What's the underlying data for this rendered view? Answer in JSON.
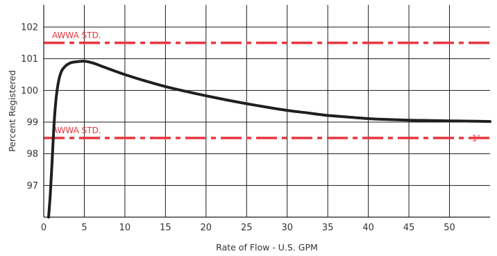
{
  "chart_data": {
    "type": "line",
    "xlabel": "Rate of Flow - U.S. GPM",
    "ylabel": "Percent Registered",
    "xlim": [
      0,
      55
    ],
    "ylim": [
      96,
      102.7
    ],
    "grid": true,
    "x_ticks": [
      0,
      5,
      10,
      15,
      20,
      25,
      30,
      35,
      40,
      45,
      50
    ],
    "y_ticks": [
      97,
      98,
      99,
      100,
      101,
      102
    ],
    "series": [
      {
        "name": "1″",
        "color": "#1f1f1f",
        "points": [
          [
            0.6,
            96.0
          ],
          [
            0.8,
            96.7
          ],
          [
            1.0,
            97.6
          ],
          [
            1.2,
            98.6
          ],
          [
            1.4,
            99.4
          ],
          [
            1.7,
            100.1
          ],
          [
            2.1,
            100.55
          ],
          [
            2.6,
            100.75
          ],
          [
            3.3,
            100.87
          ],
          [
            4.2,
            100.91
          ],
          [
            5.0,
            100.92
          ],
          [
            6.0,
            100.87
          ],
          [
            7.5,
            100.73
          ],
          [
            10.0,
            100.5
          ],
          [
            12.5,
            100.3
          ],
          [
            15.0,
            100.12
          ],
          [
            17.5,
            99.97
          ],
          [
            20.0,
            99.83
          ],
          [
            22.5,
            99.7
          ],
          [
            25.0,
            99.58
          ],
          [
            27.5,
            99.47
          ],
          [
            30.0,
            99.37
          ],
          [
            32.5,
            99.29
          ],
          [
            35.0,
            99.21
          ],
          [
            37.5,
            99.16
          ],
          [
            40.0,
            99.11
          ],
          [
            42.5,
            99.08
          ],
          [
            45.0,
            99.06
          ],
          [
            47.5,
            99.05
          ],
          [
            50.0,
            99.04
          ],
          [
            52.5,
            99.03
          ],
          [
            55.0,
            99.02
          ]
        ]
      }
    ],
    "reference_lines": [
      {
        "label": "AWWA STD.",
        "value": 101.5,
        "color": "#e8363f"
      },
      {
        "label": "AWWA STD.",
        "value": 98.5,
        "color": "#e8363f"
      }
    ],
    "annotations": [
      {
        "text": "1″",
        "x": 53.8,
        "y": 98.5,
        "color": "#e8363f"
      }
    ]
  }
}
